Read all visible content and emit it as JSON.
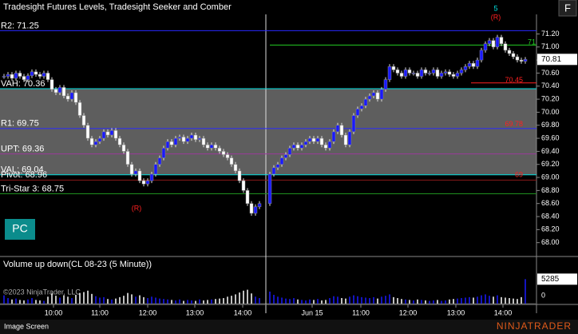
{
  "header": {
    "title": "Tradesight Futures Levels, Tradesight Seeker and Comber",
    "button": "F"
  },
  "chart_data": {
    "type": "candlestick",
    "closes": [
      70.55,
      70.58,
      70.52,
      70.6,
      70.55,
      70.5,
      70.56,
      70.62,
      70.58,
      70.55,
      70.6,
      70.5,
      70.35,
      70.3,
      70.38,
      70.25,
      70.2,
      70.3,
      70.15,
      69.95,
      69.8,
      69.6,
      69.5,
      69.55,
      69.6,
      69.7,
      69.65,
      69.72,
      69.6,
      69.5,
      69.4,
      69.2,
      69.05,
      69.1,
      68.95,
      68.9,
      68.95,
      69.05,
      69.2,
      69.3,
      69.45,
      69.55,
      69.5,
      69.6,
      69.62,
      69.55,
      69.6,
      69.65,
      69.58,
      69.6,
      69.5,
      69.45,
      69.5,
      69.45,
      69.4,
      69.35,
      69.3,
      69.2,
      69.1,
      68.95,
      68.8,
      68.6,
      68.45,
      68.55,
      68.6,
      69.05,
      69.15,
      69.2,
      69.3,
      69.35,
      69.45,
      69.5,
      69.45,
      69.5,
      69.55,
      69.6,
      69.55,
      69.6,
      69.5,
      69.45,
      69.55,
      69.7,
      69.8,
      69.65,
      69.5,
      69.7,
      69.95,
      70.05,
      70.1,
      70.2,
      70.25,
      70.3,
      70.2,
      70.35,
      70.5,
      70.7,
      70.65,
      70.6,
      70.55,
      70.65,
      70.6,
      70.6,
      70.55,
      70.65,
      70.6,
      70.6,
      70.65,
      70.55,
      70.6,
      70.62,
      70.58,
      70.55,
      70.6,
      70.65,
      70.7,
      70.75,
      70.7,
      70.8,
      70.95,
      71.05,
      71.1,
      71.0,
      71.15,
      71.05,
      70.95,
      70.9,
      70.85,
      70.8,
      70.78,
      70.81
    ],
    "up_color": "#1a1aff",
    "down_color": "#ffffff",
    "ylim": [
      67.8,
      71.5
    ],
    "yticks": [
      {
        "value": 68.0,
        "label": "68.00"
      },
      {
        "value": 68.2,
        "label": "68.20"
      },
      {
        "value": 68.4,
        "label": "68.40"
      },
      {
        "value": 68.6,
        "label": "68.60"
      },
      {
        "value": 68.8,
        "label": "68.80"
      },
      {
        "value": 69.0,
        "label": "69.00"
      },
      {
        "value": 69.2,
        "label": "69.20"
      },
      {
        "value": 69.4,
        "label": "69.40"
      },
      {
        "value": 69.6,
        "label": "69.60"
      },
      {
        "value": 69.8,
        "label": "69.80"
      },
      {
        "value": 70.0,
        "label": "70.00"
      },
      {
        "value": 70.2,
        "label": "70.20"
      },
      {
        "value": 70.4,
        "label": "70.40"
      },
      {
        "value": 70.6,
        "label": "70.60"
      },
      {
        "value": 70.8,
        "label": "70.80"
      },
      {
        "value": 71.0,
        "label": "71.00"
      },
      {
        "value": 71.2,
        "label": "71.20"
      }
    ],
    "last_price": 70.81,
    "levels": [
      {
        "label": "R2: 71.25",
        "value": 71.25,
        "color": "#2a2aff"
      },
      {
        "label": "VAH: 70.36",
        "value": 70.36,
        "color": "#00e0e0"
      },
      {
        "label": "R1: 69.75",
        "value": 69.75,
        "color": "#2a2aff"
      },
      {
        "label": "UPT: 69.36",
        "value": 69.36,
        "color": "#9a3a9a"
      },
      {
        "label": "VAL: 69.04",
        "value": 69.04,
        "color": "#00e0e0"
      },
      {
        "label": "Pivot: 68.96",
        "value": 68.96,
        "color": "#8b1a1a"
      },
      {
        "label": "Tri-Star 3: 68.75",
        "value": 68.75,
        "color": "#1f8f1f"
      }
    ],
    "right_levels": [
      {
        "label": "71",
        "value": 71.03,
        "color": "#22cc22"
      },
      {
        "label": "70.45",
        "value": 70.45,
        "color": "#ff2020"
      },
      {
        "label": "69.78",
        "value": 69.78,
        "color": "#ff2020"
      },
      {
        "label": "69",
        "value": 69.0,
        "color": "#ff2020"
      }
    ],
    "band_color": "#5e5e5e",
    "x_labels": [
      "10:00",
      "11:00",
      "12:00",
      "13:00",
      "14:00",
      "Jun 15",
      "11:00",
      "12:00",
      "13:00",
      "14:00"
    ],
    "annotations": [
      "(R)",
      "(R)",
      "5"
    ]
  },
  "volume": {
    "title": "Volume up down(CL 08-23 (5 Minute))",
    "values": [
      1800,
      1200,
      900,
      1100,
      800,
      700,
      900,
      1200,
      800,
      700,
      600,
      1500,
      2200,
      1700,
      1300,
      1800,
      1500,
      1200,
      1900,
      2300,
      2500,
      2800,
      2100,
      1600,
      1300,
      1400,
      1000,
      900,
      1100,
      1400,
      1700,
      2300,
      2000,
      1500,
      1800,
      1400,
      1200,
      1500,
      1300,
      1100,
      1000,
      900,
      800,
      700,
      900,
      600,
      800,
      700,
      600,
      900,
      700,
      800,
      900,
      1000,
      1100,
      1200,
      1500,
      1700,
      2000,
      2400,
      2800,
      3000,
      2200,
      1500,
      1200,
      2600,
      1900,
      1500,
      1300,
      1100,
      1000,
      1200,
      900,
      800,
      700,
      900,
      800,
      1000,
      700,
      800,
      1200,
      1600,
      1500,
      1200,
      1100,
      1500,
      1800,
      1600,
      1400,
      1300,
      1200,
      1400,
      1100,
      1500,
      1700,
      2000,
      1400,
      1200,
      1000,
      900,
      800,
      700,
      900,
      800,
      700,
      600,
      700,
      800,
      600,
      700,
      900,
      1000,
      1100,
      1200,
      1300,
      1400,
      1300,
      1500,
      1800,
      2000,
      1700,
      1500,
      1800,
      1400,
      1300,
      1200,
      1100,
      1000,
      1400,
      5285
    ],
    "ylim": [
      0,
      10000
    ],
    "yticks": [
      0
    ],
    "last": 5285
  },
  "pc_button": "PC",
  "copyright": "©2023 NinjaTrader, LLC",
  "footer": {
    "label": "Image Screen",
    "logo": "NINJATRADER"
  }
}
